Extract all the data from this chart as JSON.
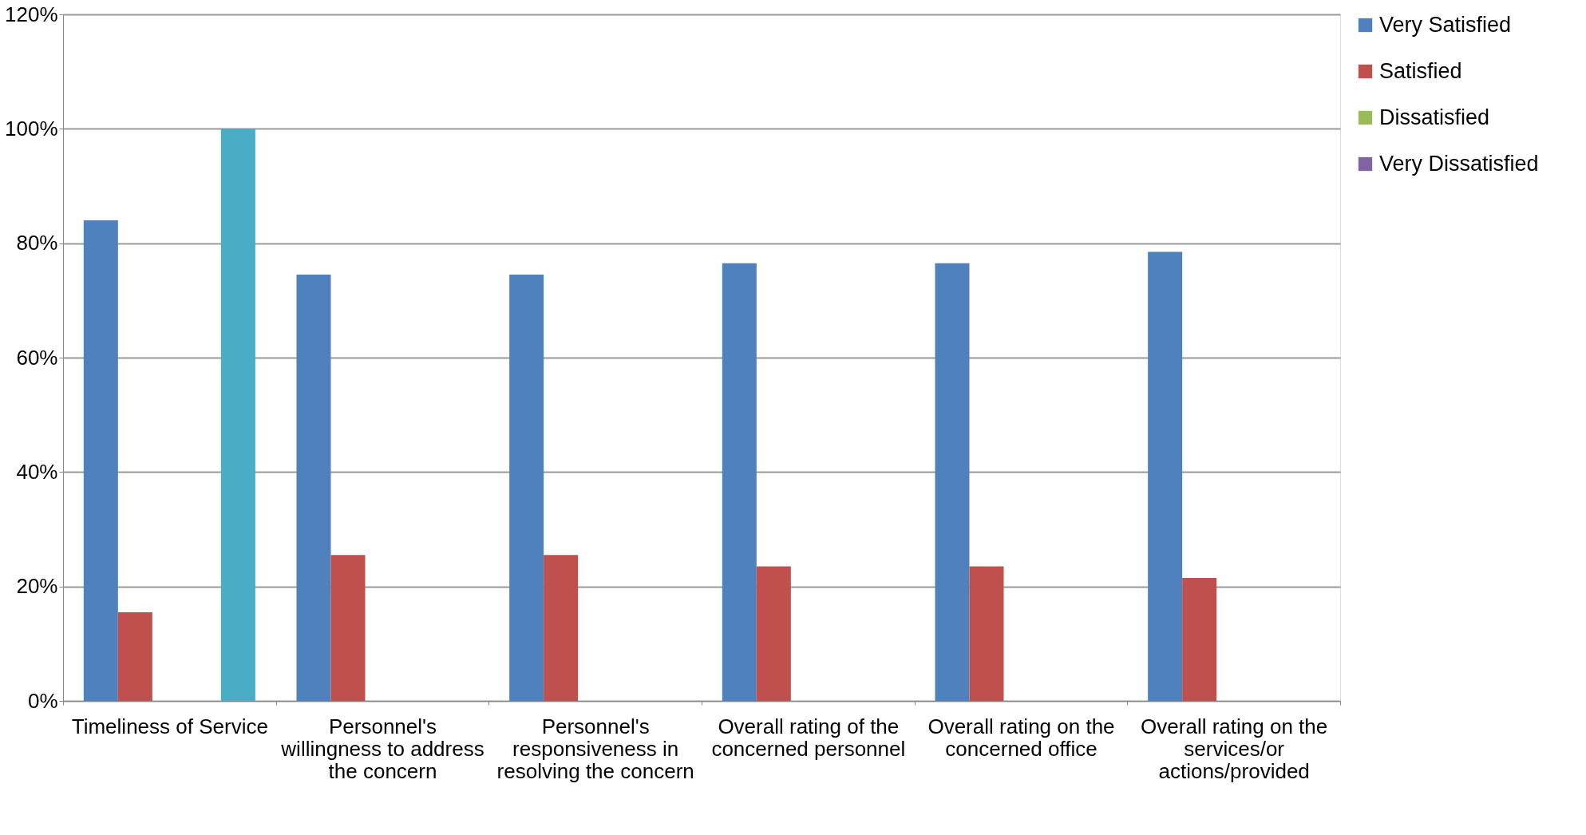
{
  "chart_data": {
    "type": "bar",
    "categories": [
      "Timeliness of Service",
      "Personnel's willingness to address the concern",
      "Personnel's responsiveness in resolving the concern",
      "Overall rating of the concerned personnel",
      "Overall rating on the concerned office",
      "Overall rating on the services/or actions/provided"
    ],
    "series": [
      {
        "name": "Very Satisfied",
        "color": "#4f81bd",
        "values": [
          84,
          74.5,
          74.5,
          76.5,
          76.5,
          78.5
        ]
      },
      {
        "name": "Satisfied",
        "color": "#c0504d",
        "values": [
          15.5,
          25.5,
          25.5,
          23.5,
          23.5,
          21.5
        ]
      },
      {
        "name": "Dissatisfied",
        "color": "#9bbb59",
        "values": [
          null,
          null,
          null,
          null,
          null,
          null
        ]
      },
      {
        "name": "Very Dissatisfied",
        "color": "#8064a2",
        "values": [
          null,
          null,
          null,
          null,
          null,
          null
        ]
      },
      {
        "color": "#4bacc6",
        "values": [
          100,
          null,
          null,
          null,
          null,
          null
        ]
      }
    ],
    "ylim": [
      0,
      120
    ],
    "yticks": [
      {
        "value": 0,
        "label": "0%"
      },
      {
        "value": 20,
        "label": "20%"
      },
      {
        "value": 40,
        "label": "40%"
      },
      {
        "value": 60,
        "label": "60%"
      },
      {
        "value": 80,
        "label": "80%"
      },
      {
        "value": 100,
        "label": "100%"
      },
      {
        "value": 120,
        "label": "120%"
      }
    ],
    "grid": "y",
    "legend": "right"
  }
}
